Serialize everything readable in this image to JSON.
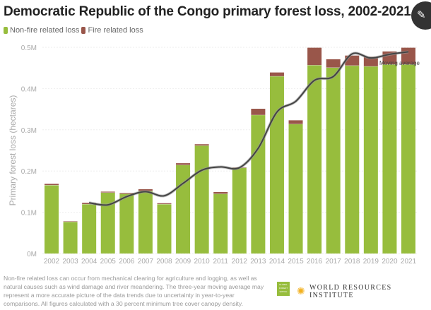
{
  "chart_data": {
    "type": "bar",
    "stacked": true,
    "title": "Democratic Republic of the Congo primary forest loss, 2002-2021",
    "ylabel": "Primary forest loss (hectares)",
    "xlabel": "",
    "ylim": [
      0,
      500000
    ],
    "yticks": [
      "0M",
      "0.1M",
      "0.2M",
      "0.3M",
      "0.4M",
      "0.5M"
    ],
    "grid": true,
    "legend_position": "top-left",
    "categories": [
      "2002",
      "2003",
      "2004",
      "2005",
      "2006",
      "2007",
      "2008",
      "2009",
      "2010",
      "2011",
      "2012",
      "2013",
      "2014",
      "2015",
      "2016",
      "2017",
      "2018",
      "2019",
      "2020",
      "2021"
    ],
    "series": [
      {
        "name": "Non-fire related loss",
        "color": "#97bd3d",
        "values": [
          166000,
          77000,
          120000,
          148000,
          145000,
          152000,
          120000,
          215000,
          262000,
          145000,
          208000,
          336000,
          430000,
          314000,
          457000,
          451000,
          456000,
          454000,
          459000,
          459000
        ]
      },
      {
        "name": "Fire related loss",
        "color": "#99564a",
        "values": [
          3000,
          1000,
          3000,
          2000,
          2000,
          4000,
          2000,
          4000,
          3000,
          4000,
          1000,
          15000,
          9000,
          9000,
          42000,
          20000,
          24000,
          23000,
          31000,
          40000
        ]
      }
    ],
    "moving_average": {
      "name": "Moving average",
      "color": "#444444",
      "x": [
        "2004",
        "2005",
        "2006",
        "2007",
        "2008",
        "2009",
        "2010",
        "2011",
        "2012",
        "2013",
        "2014",
        "2015",
        "2016",
        "2017",
        "2018",
        "2019",
        "2020",
        "2021"
      ],
      "values": [
        123000,
        118000,
        138000,
        150000,
        140000,
        170000,
        202000,
        210000,
        208000,
        255000,
        343000,
        369000,
        420000,
        429000,
        484000,
        474000,
        483000,
        489000
      ]
    }
  },
  "edit_icon": "pencil-icon",
  "footnote": "Non-fire related loss can occur from mechanical clearing for agriculture and logging, as well as natural causes such as wind damage and river meandering. The three-year moving average may represent a more accurate picture of the data trends due to uncertainty in year-to-year comparisons. All figures calculated with a 30 percent minimum tree cover canopy density.",
  "logos": {
    "gfw": "GLOBAL FOREST WATCH",
    "wri": "WORLD RESOURCES INSTITUTE"
  }
}
